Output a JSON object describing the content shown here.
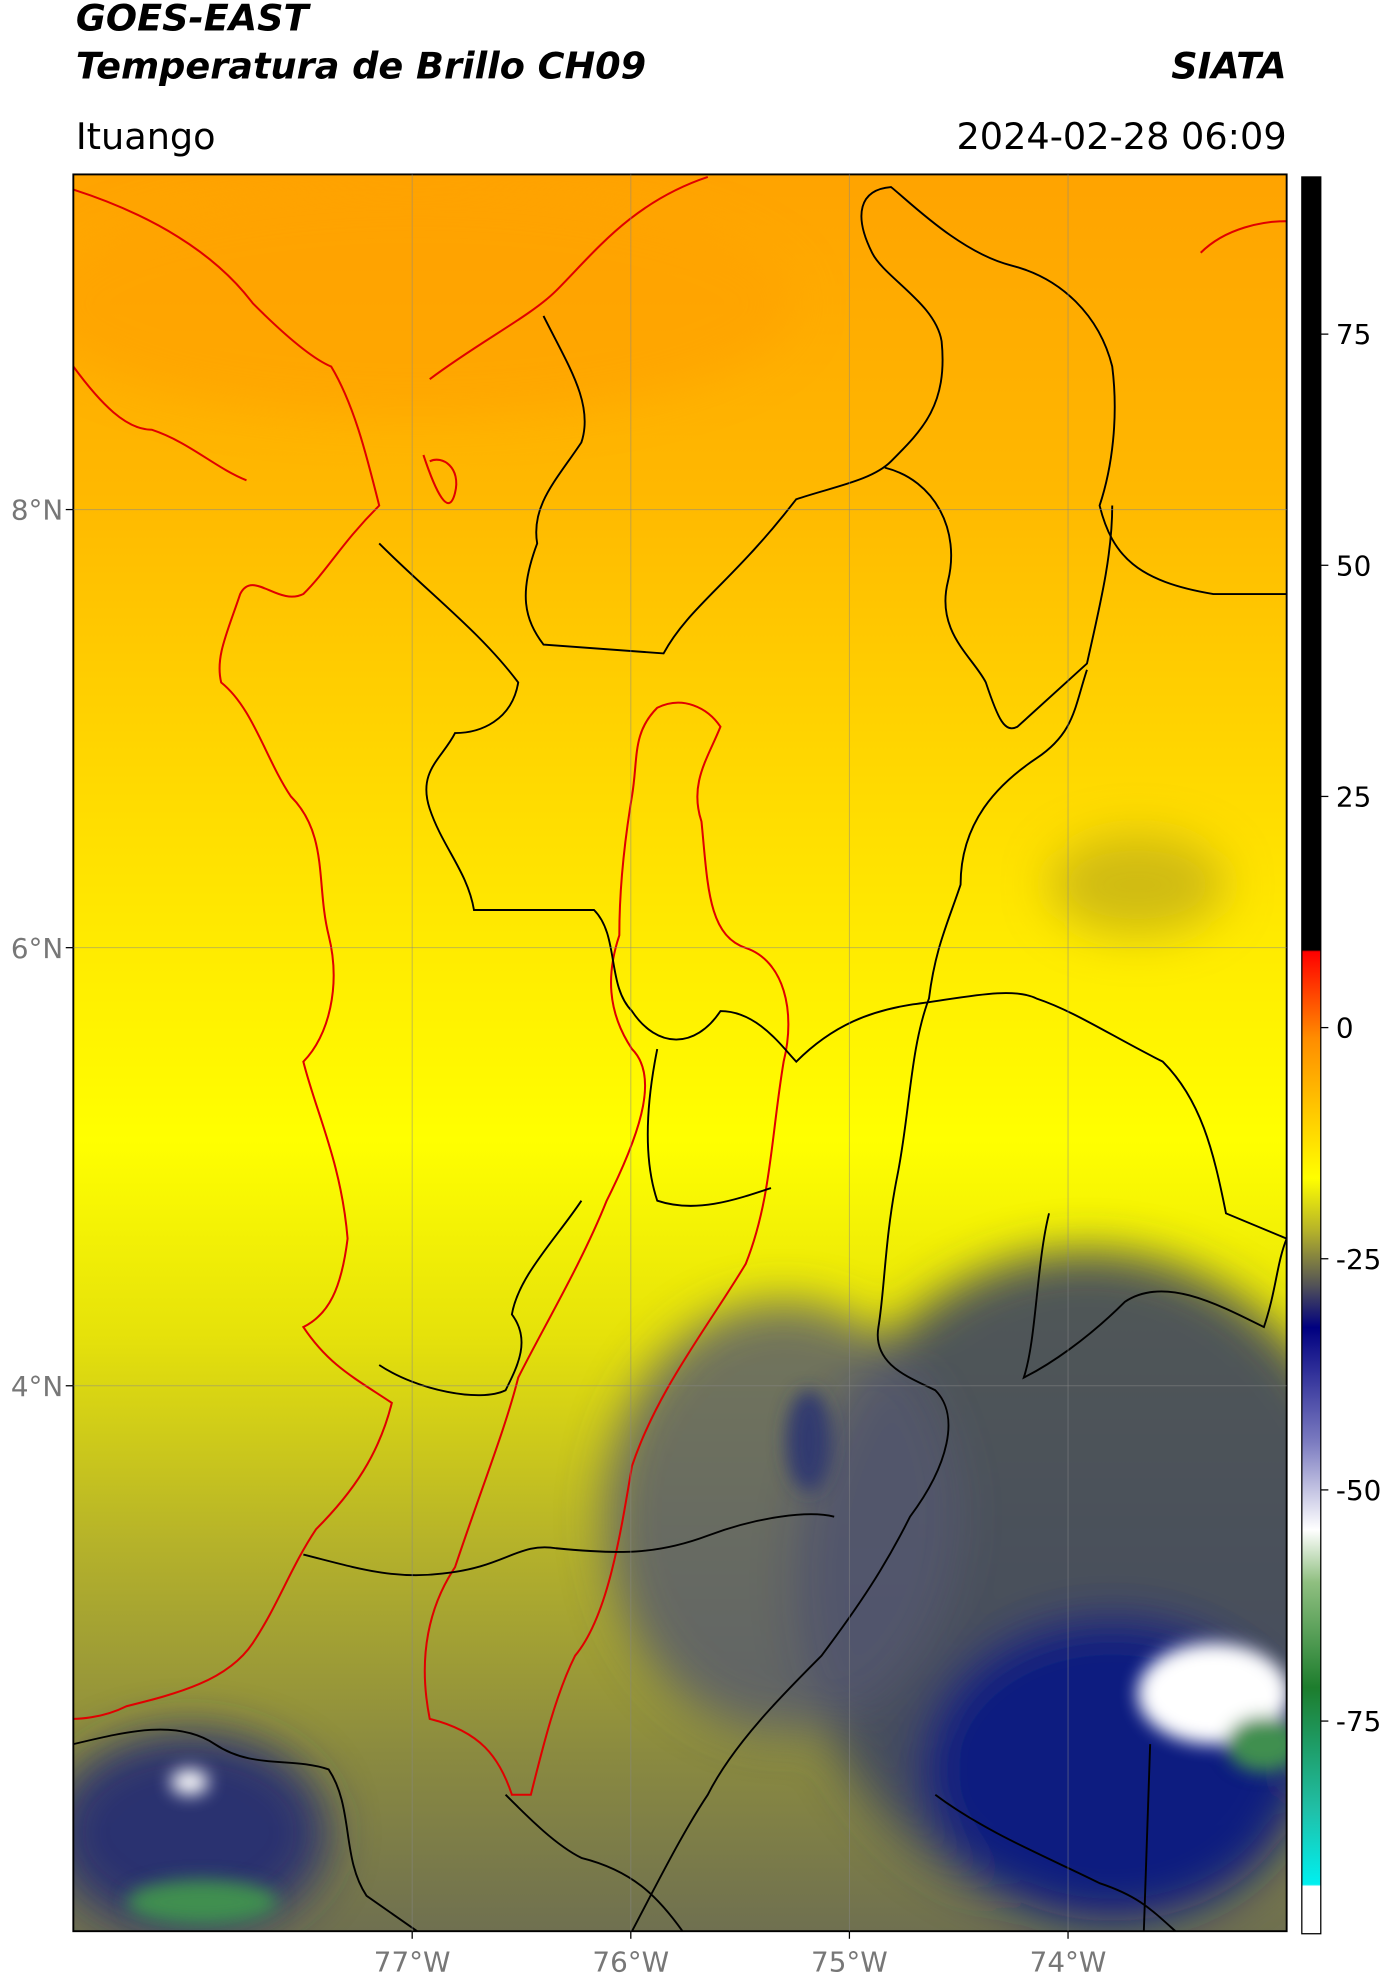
{
  "header": {
    "title": "GOES-EAST",
    "subtitle": "Temperatura de Brillo CH09",
    "source": "SIATA",
    "location": "Ituango",
    "datetime": "2024-02-28 06:09"
  },
  "map": {
    "latlim": [
      1.51,
      9.53
    ],
    "lonlim": [
      -78.55,
      -73.0
    ],
    "lat_ticks": [
      {
        "value": 8,
        "label": "8°N"
      },
      {
        "value": 6,
        "label": "6°N"
      },
      {
        "value": 4,
        "label": "4°N"
      }
    ],
    "lon_ticks": [
      {
        "value": -77,
        "label": "77°W"
      },
      {
        "value": -76,
        "label": "76°W"
      },
      {
        "value": -75,
        "label": "75°W"
      },
      {
        "value": -74,
        "label": "74°W"
      }
    ]
  },
  "colorbar": {
    "lim": [
      -98,
      92
    ],
    "ticks": [
      75,
      50,
      25,
      0,
      -25,
      -50,
      -75
    ]
  }
}
